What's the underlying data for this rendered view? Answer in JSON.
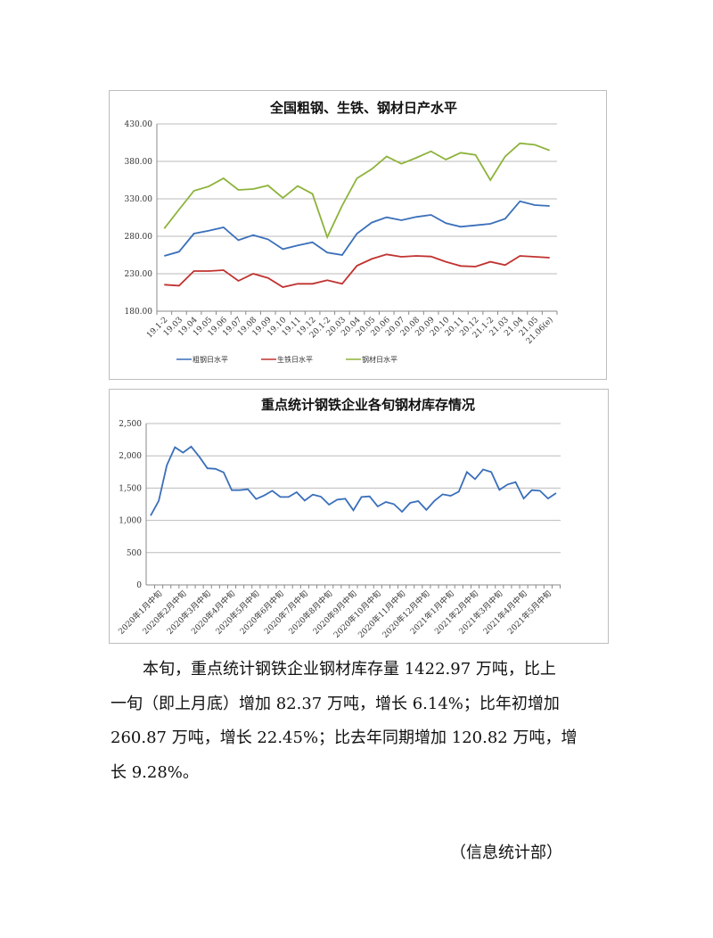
{
  "chart_data": [
    {
      "type": "line",
      "title": "全国粗钢、生铁、钢材日产水平",
      "xlabel": "",
      "ylabel": "",
      "ylim": [
        180,
        430
      ],
      "yticks": [
        "180.00",
        "230.00",
        "280.00",
        "330.00",
        "380.00",
        "430.00"
      ],
      "ytick_values": [
        180,
        230,
        280,
        330,
        380,
        430
      ],
      "grid": true,
      "legend_position": "bottom",
      "categories": [
        "19.1-2",
        "19.03",
        "19.04",
        "19.05",
        "19.06",
        "19.07",
        "19.08",
        "19.09",
        "19.10",
        "19.11",
        "19.12",
        "20.1-2",
        "20.03",
        "20.04",
        "20.05",
        "20.06",
        "20.07",
        "20.08",
        "20.09",
        "20.10",
        "20.11",
        "20.12",
        "21.1-2",
        "21.03",
        "21.04",
        "21.05",
        "21.06(e)"
      ],
      "series": [
        {
          "name": "粗钢日水平",
          "color": "#3a6fba",
          "values": [
            253.8,
            259.4,
            283.6,
            287.5,
            291.9,
            274.8,
            281.6,
            276.0,
            262.9,
            267.7,
            272.0,
            258.2,
            255.0,
            283.6,
            298.3,
            305.4,
            301.4,
            305.8,
            308.6,
            297.5,
            292.7,
            294.7,
            296.7,
            303.4,
            326.8,
            321.7,
            320.5
          ]
        },
        {
          "name": "生铁日水平",
          "color": "#c0322f",
          "values": [
            215.3,
            214.1,
            233.6,
            233.6,
            234.8,
            220.5,
            230.0,
            224.4,
            212.1,
            216.5,
            216.5,
            221.3,
            216.5,
            240.7,
            249.8,
            255.8,
            252.6,
            253.8,
            253.0,
            245.9,
            240.3,
            239.5,
            245.9,
            241.5,
            253.8,
            252.6,
            251.4
          ]
        },
        {
          "name": "钢材日水平",
          "color": "#8db33a",
          "values": [
            290.3,
            315.7,
            340.7,
            346.6,
            357.4,
            341.9,
            343.1,
            347.9,
            331.2,
            347.1,
            336.7,
            278.8,
            320.9,
            357.4,
            369.7,
            386.7,
            376.8,
            384.8,
            393.5,
            382.4,
            391.5,
            388.7,
            355.0,
            386.7,
            404.2,
            402.2,
            394.7
          ]
        }
      ]
    },
    {
      "type": "line",
      "title": "重点统计钢铁企业各旬钢材库存情况",
      "xlabel": "",
      "ylabel": "",
      "ylim": [
        0,
        2500
      ],
      "yticks": [
        "0",
        "500",
        "1,000",
        "1,500",
        "2,000",
        "2,500"
      ],
      "ytick_values": [
        0,
        500,
        1000,
        1500,
        2000,
        2500
      ],
      "grid": true,
      "label_every": 3,
      "tick_labels": [
        "2020年1月中旬",
        "2020年2月中旬",
        "2020年3月中旬",
        "2020年4月中旬",
        "2020年5月中旬",
        "2020年6月中旬",
        "2020年7月中旬",
        "2020年8月中旬",
        "2020年9月中旬",
        "2020年10月中旬",
        "2020年11月中旬",
        "2020年12月中旬",
        "2021年1月中旬",
        "2021年2月中旬",
        "2021年3月中旬",
        "2021年4月中旬",
        "2021年5月中旬"
      ],
      "series": [
        {
          "name": "钢材库存",
          "color": "#3a6fba",
          "values": [
            1073,
            1303,
            1853,
            2133,
            2050,
            2142,
            1986,
            1807,
            1798,
            1743,
            1468,
            1468,
            1482,
            1330,
            1385,
            1459,
            1362,
            1362,
            1436,
            1307,
            1399,
            1367,
            1243,
            1321,
            1335,
            1156,
            1362,
            1372,
            1216,
            1284,
            1252,
            1133,
            1271,
            1298,
            1161,
            1303,
            1404,
            1381,
            1445,
            1748,
            1638,
            1789,
            1748,
            1472,
            1555,
            1592,
            1339,
            1468,
            1459,
            1339,
            1423
          ]
        }
      ]
    }
  ],
  "paragraph": {
    "lines": [
      "　　本旬，重点统计钢铁企业钢材库存量 1422.97 万吨，比上",
      "一旬（即上月底）增加 82.37 万吨，增长 6.14%；比年初增加",
      "260.87 万吨，增长 22.45%；比去年同期增加 120.82 万吨，增",
      "长 9.28%。"
    ]
  },
  "footer": "（信息统计部）"
}
